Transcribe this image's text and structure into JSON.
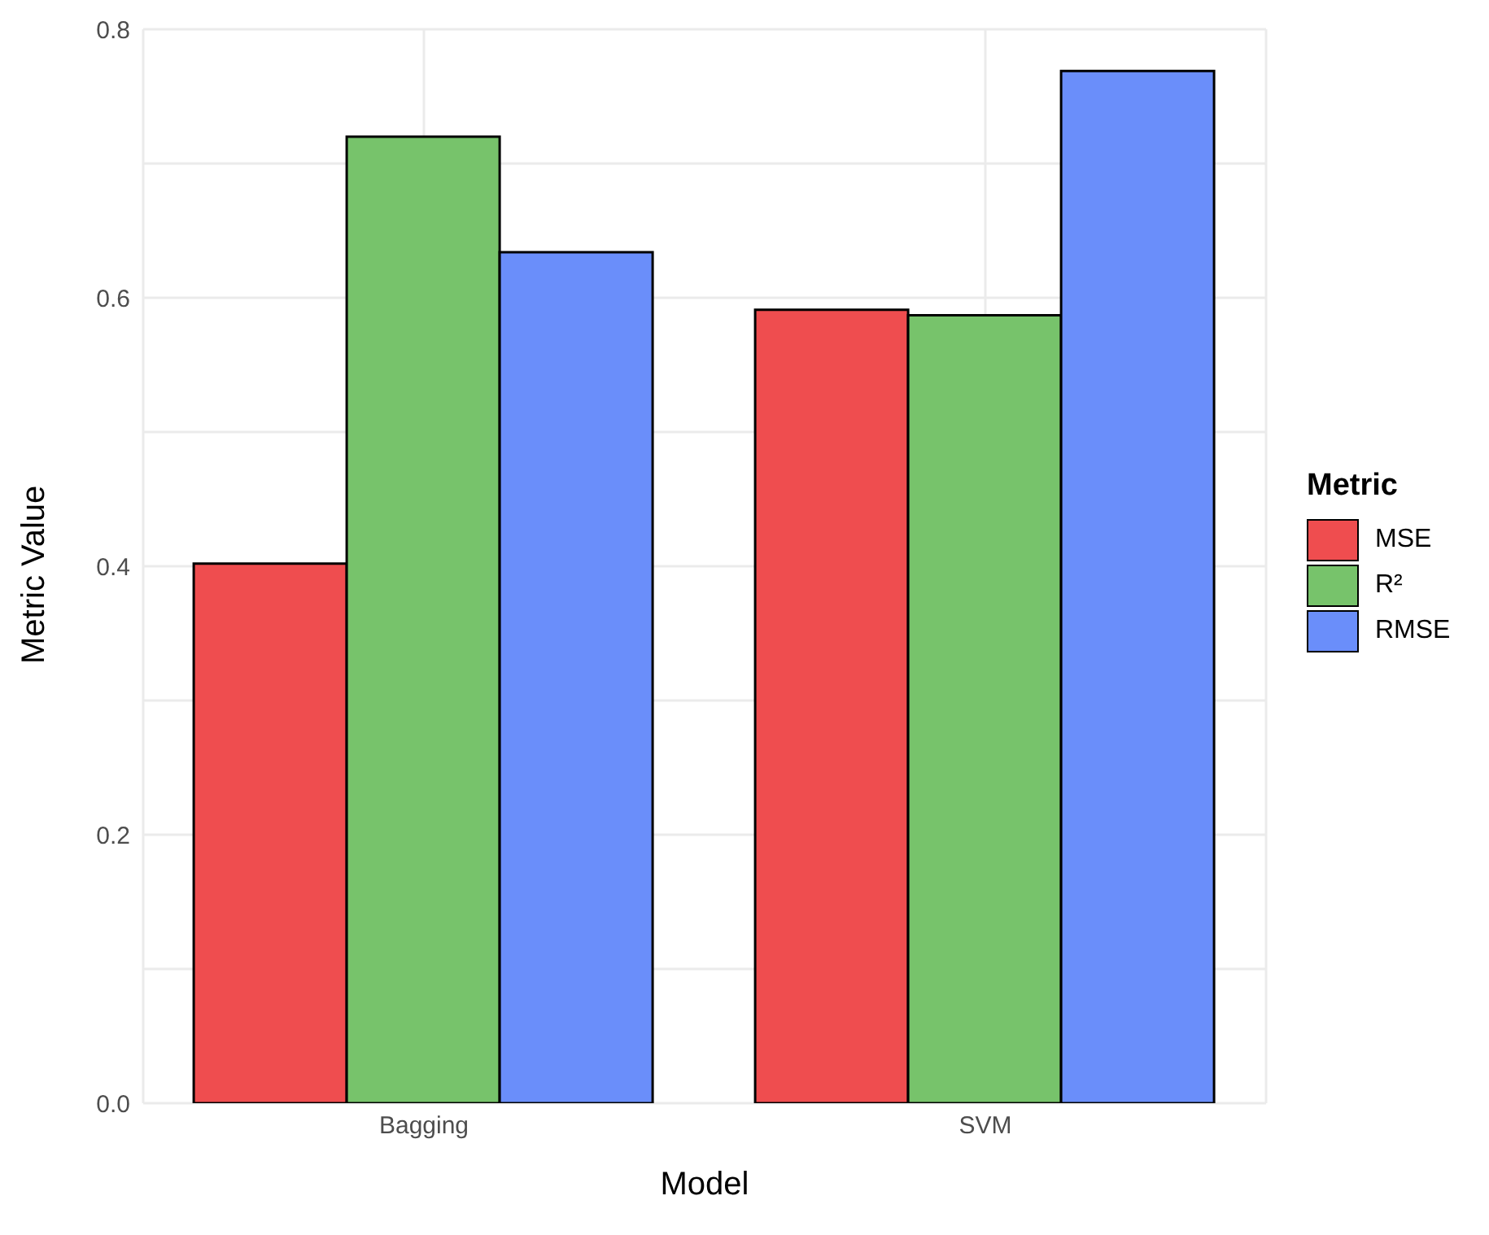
{
  "chart_data": {
    "type": "bar",
    "xlabel": "Model",
    "ylabel": "Metric Value",
    "legend_title": "Metric",
    "categories": [
      "Bagging",
      "SVM"
    ],
    "series": [
      {
        "name": "MSE",
        "color": "#ef4d4f",
        "values": [
          0.402,
          0.591
        ]
      },
      {
        "name": "R²",
        "color": "#77c36b",
        "values": [
          0.72,
          0.587
        ]
      },
      {
        "name": "RMSE",
        "color": "#6a8efa",
        "values": [
          0.634,
          0.769
        ]
      }
    ],
    "ylim": [
      0,
      0.8
    ],
    "yticks": [
      {
        "value": 0,
        "label": "0.0"
      },
      0.2,
      0.4,
      0.6,
      0.8
    ],
    "grid": true,
    "legend": "right"
  }
}
